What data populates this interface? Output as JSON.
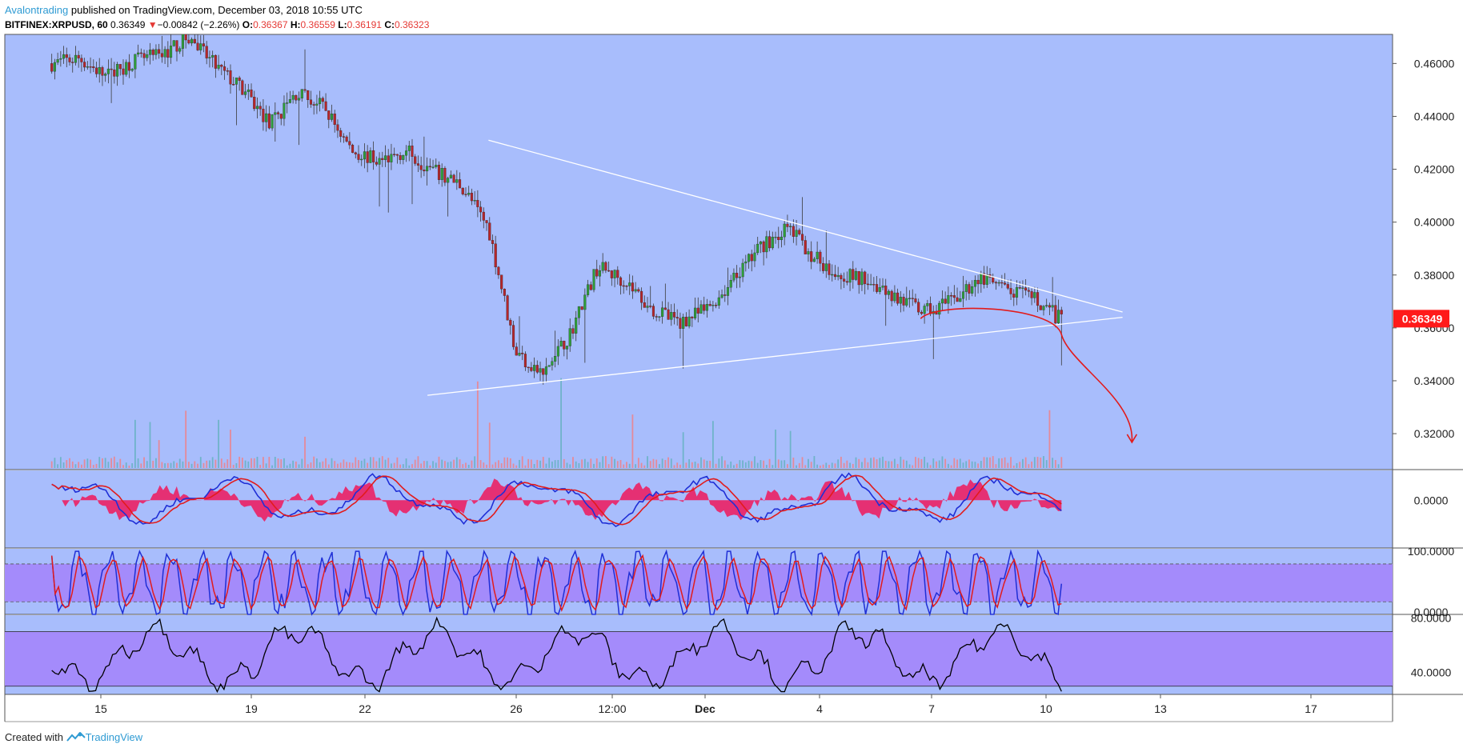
{
  "header": {
    "author": "Avalontrading",
    "published_text": "published on TradingView.com, December 03, 2018 10:55 UTC",
    "symbol": "BITFINEX:XRPUSD, 60",
    "last": "0.36349",
    "change_arrow": "▼",
    "change": "−0.00842 (−2.26%)",
    "o_label": "O:",
    "o": "0.36367",
    "h_label": "H:",
    "h": "0.36559",
    "l_label": "L:",
    "l": "0.36191",
    "c_label": "C:",
    "c": "0.36323"
  },
  "footer": {
    "created_with": "Created with",
    "brand": "TradingView",
    "logo_icon": "tradingview-logo-icon"
  },
  "colors": {
    "pane_bg": "#a8bdfc",
    "band_fill": "#a48bfb",
    "up": "#2e9e3a",
    "down": "#b5262a",
    "vol_up": "#6fb3c9",
    "vol_down": "#e48a9a",
    "macd_line": "#1f2fd6",
    "signal_line": "#e21b1b",
    "hist": "#f0175a",
    "rsi_line": "#000000",
    "trend_line": "#ffffff",
    "forecast": "#e21b1b",
    "price_badge": "#ff1a1a"
  },
  "chart_data": {
    "type": "candlestick",
    "title": "BITFINEX:XRPUSD, 60",
    "x_tick_labels": [
      "15",
      "19",
      "22",
      "26",
      "12:00",
      "Dec",
      "4",
      "7",
      "10",
      "13",
      "17"
    ],
    "price_axis": {
      "ticks": [
        "0.46000",
        "0.44000",
        "0.42000",
        "0.40000",
        "0.38000",
        "0.36000",
        "0.34000",
        "0.32000"
      ],
      "range": [
        0.3064,
        0.471
      ]
    },
    "last_price_label": "0.36349",
    "price_path": [
      [
        0.46,
        0.45
      ],
      [
        0.462,
        0.44
      ],
      [
        0.455,
        0.44
      ],
      [
        0.461,
        0.45
      ],
      [
        0.463,
        0.46
      ],
      [
        0.47,
        0.47
      ],
      [
        0.459,
        0.46
      ],
      [
        0.45,
        0.44
      ],
      [
        0.437,
        0.43
      ],
      [
        0.449,
        0.44
      ],
      [
        0.443,
        0.43
      ],
      [
        0.427,
        0.42
      ],
      [
        0.423,
        0.41
      ],
      [
        0.427,
        0.41
      ],
      [
        0.419,
        0.41
      ],
      [
        0.414,
        0.41
      ],
      [
        0.398,
        0.4
      ],
      [
        0.351,
        0.35
      ],
      [
        0.342,
        0.34
      ],
      [
        0.358,
        0.36
      ],
      [
        0.383,
        0.38
      ],
      [
        0.378,
        0.37
      ],
      [
        0.367,
        0.36
      ],
      [
        0.362,
        0.36
      ],
      [
        0.367,
        0.36
      ],
      [
        0.378,
        0.38
      ],
      [
        0.391,
        0.39
      ],
      [
        0.398,
        0.4
      ],
      [
        0.386,
        0.38
      ],
      [
        0.38,
        0.38
      ],
      [
        0.378,
        0.37
      ],
      [
        0.371,
        0.37
      ],
      [
        0.366,
        0.36
      ],
      [
        0.37,
        0.37
      ],
      [
        0.379,
        0.38
      ],
      [
        0.374,
        0.37
      ],
      [
        0.371,
        0.37
      ],
      [
        0.363,
        0.36
      ]
    ],
    "triangle": {
      "upper_start": [
        22.8,
        0.431
      ],
      "upper_end": [
        36.3,
        0.366
      ],
      "lower_start": [
        21.5,
        0.3345
      ],
      "lower_end": [
        36.3,
        0.364
      ]
    },
    "forecast_path": [
      [
        32.0,
        0.3635
      ],
      [
        33.6,
        0.367
      ],
      [
        35.0,
        0.3575
      ],
      [
        36.2,
        0.33
      ],
      [
        36.5,
        0.317
      ]
    ],
    "volume": {
      "type": "bar"
    },
    "macd": {
      "zero_label": "0.0000",
      "range": [
        -0.016,
        0.01
      ]
    },
    "stochastic": {
      "labels": [
        "100.0000",
        "0.0000"
      ],
      "range": [
        0,
        104
      ],
      "bands": [
        80,
        20
      ]
    },
    "rsi": {
      "labels": [
        "80.0000",
        "40.0000"
      ],
      "range": [
        24,
        82
      ],
      "bands": [
        70,
        30
      ]
    }
  }
}
